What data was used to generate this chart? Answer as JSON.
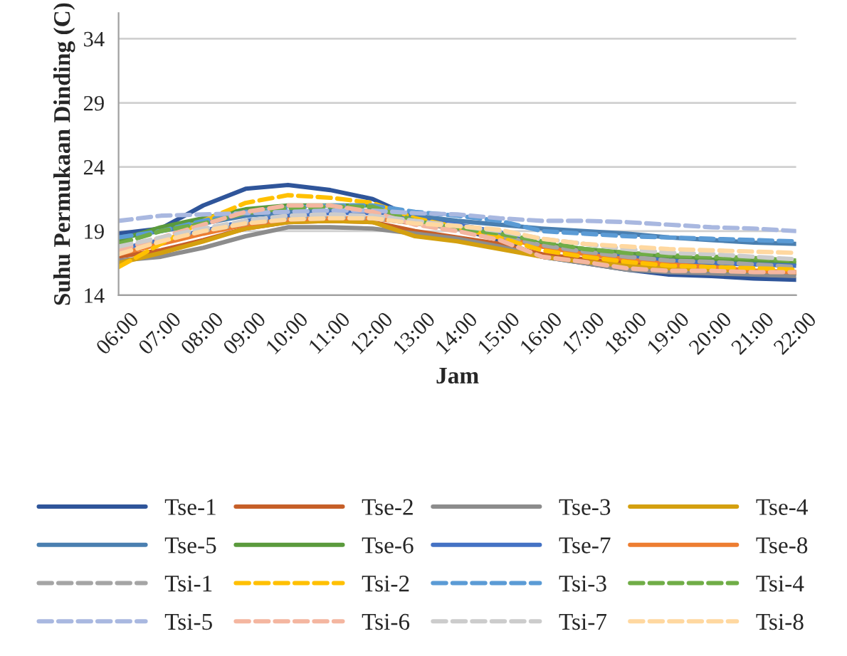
{
  "chart_data": {
    "type": "line",
    "xlabel": "Jam",
    "ylabel": "Suhu Permukaan Dinding (C)",
    "categories": [
      "06:00",
      "07:00",
      "08:00",
      "09:00",
      "10:00",
      "11:00",
      "12:00",
      "13:00",
      "14:00",
      "15:00",
      "16:00",
      "17:00",
      "18:00",
      "19:00",
      "20:00",
      "21:00",
      "22:00"
    ],
    "ylim": [
      14,
      36
    ],
    "yticks": [
      14,
      19,
      24,
      29,
      34
    ],
    "grid": "y",
    "legend": "bottom",
    "series": [
      {
        "name": "Tse-1",
        "color": "#2f559a",
        "line_style": "solid",
        "values": [
          18.8,
          19.2,
          21.0,
          22.3,
          22.6,
          22.2,
          21.5,
          20.0,
          19.2,
          18.3,
          17.0,
          16.5,
          16.0,
          15.6,
          15.5,
          15.3,
          15.2
        ]
      },
      {
        "name": "Tse-2",
        "color": "#c65f28",
        "line_style": "solid",
        "values": [
          17.0,
          17.5,
          18.3,
          19.2,
          19.7,
          19.8,
          19.7,
          19.0,
          18.5,
          18.0,
          17.2,
          16.8,
          16.5,
          16.2,
          16.0,
          15.8,
          15.7
        ]
      },
      {
        "name": "Tse-3",
        "color": "#8c8c8c",
        "line_style": "solid",
        "values": [
          16.7,
          17.0,
          17.7,
          18.6,
          19.3,
          19.3,
          19.2,
          18.8,
          18.4,
          17.8,
          17.0,
          16.5,
          16.0,
          15.8,
          15.7,
          15.6,
          15.5
        ]
      },
      {
        "name": "Tse-4",
        "color": "#d4a00f",
        "line_style": "solid",
        "values": [
          16.5,
          17.3,
          18.2,
          19.2,
          19.7,
          19.8,
          19.7,
          18.6,
          18.2,
          17.6,
          17.0,
          16.6,
          16.3,
          16.1,
          16.0,
          15.9,
          15.8
        ]
      },
      {
        "name": "Tse-5",
        "color": "#4a7fb0",
        "line_style": "solid",
        "values": [
          18.5,
          19.0,
          19.6,
          20.2,
          20.5,
          20.6,
          20.6,
          20.2,
          19.8,
          19.5,
          19.2,
          19.0,
          18.8,
          18.5,
          18.3,
          18.1,
          18.0
        ]
      },
      {
        "name": "Tse-6",
        "color": "#5a9a3c",
        "line_style": "solid",
        "values": [
          18.3,
          19.3,
          20.0,
          20.7,
          21.0,
          21.0,
          21.0,
          19.8,
          19.3,
          18.7,
          18.0,
          17.6,
          17.3,
          17.0,
          16.8,
          16.7,
          16.5
        ]
      },
      {
        "name": "Tse-7",
        "color": "#4472c4",
        "line_style": "solid",
        "values": [
          17.6,
          18.3,
          19.0,
          19.8,
          20.2,
          20.4,
          20.4,
          19.9,
          19.5,
          18.9,
          17.8,
          17.3,
          17.0,
          16.7,
          16.5,
          16.4,
          16.3
        ]
      },
      {
        "name": "Tse-8",
        "color": "#ed7d31",
        "line_style": "solid",
        "values": [
          17.2,
          18.0,
          18.8,
          19.5,
          19.9,
          20.0,
          20.0,
          19.6,
          19.2,
          18.5,
          17.8,
          17.2,
          16.8,
          16.4,
          16.2,
          15.9,
          15.8
        ]
      },
      {
        "name": "Tsi-1",
        "color": "#a5a5a5",
        "line_style": "dashed",
        "values": [
          17.6,
          18.3,
          19.0,
          19.6,
          20.0,
          20.1,
          20.0,
          19.6,
          19.2,
          18.6,
          17.9,
          17.4,
          17.0,
          16.7,
          16.6,
          16.4,
          16.2
        ]
      },
      {
        "name": "Tsi-2",
        "color": "#ffc000",
        "line_style": "dashed",
        "values": [
          16.2,
          18.0,
          19.8,
          21.2,
          21.8,
          21.6,
          21.2,
          20.0,
          19.3,
          18.5,
          17.5,
          17.0,
          16.6,
          16.3,
          16.2,
          16.1,
          16.0
        ]
      },
      {
        "name": "Tsi-3",
        "color": "#5b9bd5",
        "line_style": "dashed",
        "values": [
          18.5,
          19.0,
          19.8,
          20.5,
          20.8,
          21.0,
          21.0,
          20.5,
          20.2,
          19.8,
          19.0,
          18.8,
          18.6,
          18.5,
          18.4,
          18.3,
          18.2
        ]
      },
      {
        "name": "Tsi-4",
        "color": "#70ad47",
        "line_style": "dashed",
        "values": [
          18.0,
          19.0,
          19.6,
          20.4,
          20.8,
          20.9,
          20.9,
          19.8,
          19.2,
          18.8,
          18.2,
          17.6,
          17.3,
          17.1,
          17.0,
          16.9,
          16.7
        ]
      },
      {
        "name": "Tsi-5",
        "color": "#a9b8e0",
        "line_style": "dashed",
        "values": [
          19.8,
          20.2,
          20.3,
          20.4,
          20.5,
          20.6,
          20.6,
          20.4,
          20.3,
          20.0,
          19.8,
          19.8,
          19.7,
          19.5,
          19.3,
          19.2,
          19.0
        ]
      },
      {
        "name": "Tsi-6",
        "color": "#f4b6a0",
        "line_style": "dashed",
        "values": [
          17.5,
          18.5,
          19.5,
          20.5,
          21.0,
          21.0,
          20.5,
          19.5,
          19.0,
          18.3,
          17.0,
          16.6,
          16.1,
          15.9,
          15.9,
          15.8,
          15.8
        ]
      },
      {
        "name": "Tsi-7",
        "color": "#cccccc",
        "line_style": "dashed",
        "values": [
          17.8,
          18.5,
          19.2,
          19.8,
          20.2,
          20.3,
          20.2,
          19.8,
          19.4,
          19.0,
          18.4,
          18.0,
          17.6,
          17.3,
          17.2,
          17.0,
          16.8
        ]
      },
      {
        "name": "Tsi-8",
        "color": "#ffd8a0",
        "line_style": "dashed",
        "values": [
          17.2,
          18.2,
          19.0,
          19.6,
          19.9,
          20.0,
          20.0,
          19.6,
          19.4,
          19.1,
          18.4,
          18.0,
          17.8,
          17.6,
          17.5,
          17.4,
          17.3
        ]
      }
    ]
  }
}
